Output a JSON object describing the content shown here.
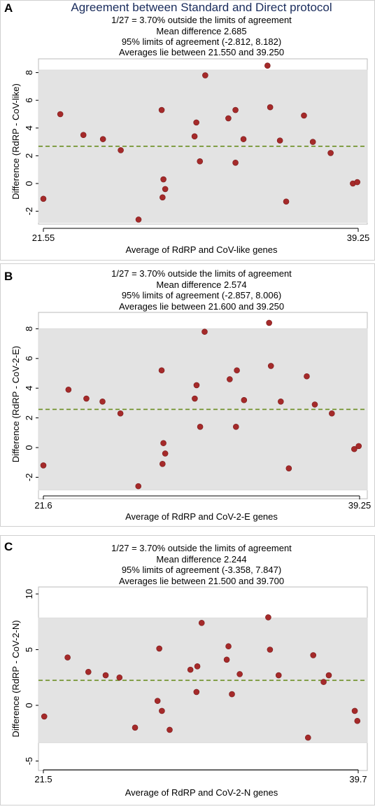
{
  "chart_data": [
    {
      "type": "scatter",
      "panel_label": "A",
      "title": "Agreement between Standard and Direct protocol",
      "subtitle_lines": [
        "1/27 =   3.70% outside the limits of agreement",
        "Mean difference  2.685",
        "95% limits of agreement (-2.812, 8.182)",
        "Averages lie between 21.550 and 39.250"
      ],
      "xlabel": "Average of RdRP and CoV-like genes",
      "ylabel": "Difference (RdRP - CoV-like)",
      "xlim": [
        21.55,
        39.25
      ],
      "ylim": [
        -2.812,
        8.182
      ],
      "x_ticks": [
        "21.55",
        "39.25"
      ],
      "y_ticks": [
        -2,
        0,
        2,
        4,
        6,
        8
      ],
      "mean_difference": 2.685,
      "limits_of_agreement": [
        -2.812,
        8.182
      ],
      "points": [
        [
          21.55,
          -1.1
        ],
        [
          22.5,
          5.0
        ],
        [
          23.8,
          3.5
        ],
        [
          24.9,
          3.2
        ],
        [
          25.9,
          2.4
        ],
        [
          26.9,
          -2.6
        ],
        [
          28.2,
          5.3
        ],
        [
          28.3,
          0.3
        ],
        [
          28.25,
          -1.0
        ],
        [
          28.4,
          -0.4
        ],
        [
          30.05,
          3.4
        ],
        [
          30.15,
          4.4
        ],
        [
          30.35,
          1.6
        ],
        [
          30.65,
          7.8
        ],
        [
          31.95,
          4.7
        ],
        [
          32.35,
          5.3
        ],
        [
          32.35,
          1.5
        ],
        [
          32.8,
          3.2
        ],
        [
          34.15,
          8.5
        ],
        [
          34.3,
          5.5
        ],
        [
          34.85,
          3.1
        ],
        [
          35.2,
          -1.3
        ],
        [
          36.2,
          4.9
        ],
        [
          36.7,
          3.0
        ],
        [
          37.7,
          2.2
        ],
        [
          38.95,
          0.0
        ],
        [
          39.2,
          0.1
        ]
      ]
    },
    {
      "type": "scatter",
      "panel_label": "B",
      "subtitle_lines": [
        "1/27 =   3.70% outside the limits of agreement",
        "Mean difference  2.574",
        "95% limits of agreement (-2.857, 8.006)",
        "Averages lie between 21.600 and 39.250"
      ],
      "xlabel": "Average of RdRP and CoV-2-E genes",
      "ylabel": "Difference (RdRP - CoV-2-E)",
      "xlim": [
        21.6,
        39.25
      ],
      "ylim": [
        -2.857,
        8.006
      ],
      "x_ticks": [
        "21.6",
        "39.25"
      ],
      "y_ticks": [
        -2,
        0,
        2,
        4,
        6,
        8
      ],
      "mean_difference": 2.574,
      "limits_of_agreement": [
        -2.857,
        8.006
      ],
      "points": [
        [
          21.6,
          -1.2
        ],
        [
          23.0,
          3.9
        ],
        [
          24.0,
          3.3
        ],
        [
          24.9,
          3.1
        ],
        [
          25.9,
          2.3
        ],
        [
          26.9,
          -2.6
        ],
        [
          28.2,
          5.2
        ],
        [
          28.3,
          0.3
        ],
        [
          28.25,
          -1.1
        ],
        [
          28.4,
          -0.4
        ],
        [
          30.05,
          3.3
        ],
        [
          30.15,
          4.2
        ],
        [
          30.35,
          1.4
        ],
        [
          30.6,
          7.8
        ],
        [
          32.0,
          4.6
        ],
        [
          32.4,
          5.2
        ],
        [
          32.35,
          1.4
        ],
        [
          32.8,
          3.2
        ],
        [
          34.2,
          8.4
        ],
        [
          34.3,
          5.5
        ],
        [
          34.85,
          3.1
        ],
        [
          35.3,
          -1.4
        ],
        [
          36.3,
          4.8
        ],
        [
          36.75,
          2.9
        ],
        [
          37.7,
          2.3
        ],
        [
          38.95,
          -0.1
        ],
        [
          39.2,
          0.1
        ]
      ]
    },
    {
      "type": "scatter",
      "panel_label": "C",
      "subtitle_lines": [
        "1/27 =   3.70% outside the limits of agreement",
        "Mean difference  2.244",
        "95% limits of agreement (-3.358, 7.847)",
        "Averages lie between 21.500 and 39.700"
      ],
      "xlabel": "Average of RdRP and CoV-2-N genes",
      "ylabel": "Difference (RdRP - CoV-2-N)",
      "xlim": [
        21.5,
        39.7
      ],
      "ylim": [
        -3.358,
        7.847
      ],
      "x_ticks": [
        "21.5",
        "39.7"
      ],
      "y_ticks": [
        -5,
        0,
        5,
        10
      ],
      "mean_difference": 2.244,
      "limits_of_agreement": [
        -3.358,
        7.847
      ],
      "points": [
        [
          21.55,
          -1.0
        ],
        [
          22.9,
          4.3
        ],
        [
          24.1,
          3.0
        ],
        [
          25.1,
          2.7
        ],
        [
          25.9,
          2.5
        ],
        [
          26.8,
          -2.0
        ],
        [
          28.2,
          5.1
        ],
        [
          28.1,
          0.4
        ],
        [
          28.35,
          -0.5
        ],
        [
          28.8,
          -2.2
        ],
        [
          30.0,
          3.2
        ],
        [
          30.4,
          3.5
        ],
        [
          30.35,
          1.2
        ],
        [
          30.65,
          7.4
        ],
        [
          32.1,
          4.1
        ],
        [
          32.2,
          5.3
        ],
        [
          32.4,
          1.0
        ],
        [
          32.85,
          2.8
        ],
        [
          34.5,
          7.9
        ],
        [
          34.6,
          5.0
        ],
        [
          35.1,
          2.7
        ],
        [
          36.8,
          -2.9
        ],
        [
          37.1,
          4.5
        ],
        [
          37.7,
          2.1
        ],
        [
          38.0,
          2.7
        ],
        [
          39.5,
          -0.5
        ],
        [
          39.65,
          -1.4
        ]
      ]
    }
  ]
}
